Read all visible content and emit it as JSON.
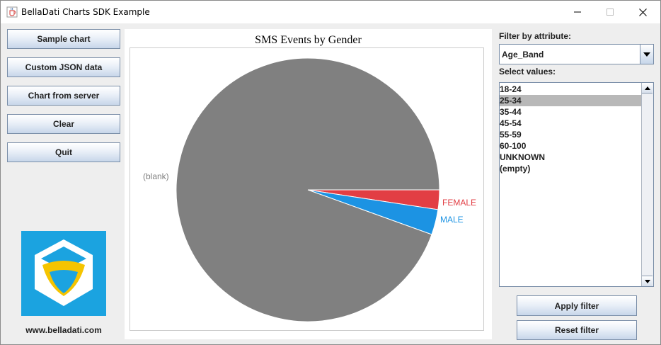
{
  "window": {
    "title": "BellaDati Charts SDK Example",
    "icon": "java-coffee-cup-icon"
  },
  "left_buttons": [
    {
      "label": "Sample chart"
    },
    {
      "label": "Custom JSON data"
    },
    {
      "label": "Chart from server"
    },
    {
      "label": "Clear"
    },
    {
      "label": "Quit"
    }
  ],
  "logo": {
    "icon": "belladati-cube-logo",
    "url": "www.belladati.com"
  },
  "chart": {
    "title": "SMS Events by Gender"
  },
  "chart_data": {
    "type": "pie",
    "title": "SMS Events by Gender",
    "slices": [
      {
        "label": "(blank)",
        "value": 94.5,
        "color": "#808080"
      },
      {
        "label": "FEMALE",
        "value": 2.4,
        "color": "#e23e44"
      },
      {
        "label": "MALE",
        "value": 3.1,
        "color": "#1c93e3"
      }
    ]
  },
  "filter": {
    "attribute_label": "Filter by attribute:",
    "attribute_value": "Age_Band",
    "values_label": "Select values:",
    "values": [
      {
        "label": "18-24",
        "selected": false
      },
      {
        "label": "25-34",
        "selected": true
      },
      {
        "label": "35-44",
        "selected": false
      },
      {
        "label": "45-54",
        "selected": false
      },
      {
        "label": "55-59",
        "selected": false
      },
      {
        "label": "60-100",
        "selected": false
      },
      {
        "label": "UNKNOWN",
        "selected": false
      },
      {
        "label": "(empty)",
        "selected": false
      }
    ],
    "apply_label": "Apply filter",
    "reset_label": "Reset filter"
  }
}
